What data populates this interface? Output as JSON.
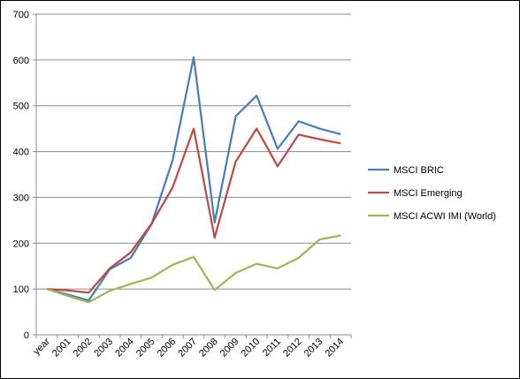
{
  "chart_data": {
    "type": "line",
    "title": "",
    "xlabel": "",
    "ylabel": "",
    "categories": [
      "year",
      "2001",
      "2002",
      "2003",
      "2004",
      "2005",
      "2006",
      "2007",
      "2008",
      "2009",
      "2010",
      "2011",
      "2012",
      "2013",
      "2014"
    ],
    "ylim": [
      0,
      700
    ],
    "yticks": [
      0,
      100,
      200,
      300,
      400,
      500,
      600,
      700
    ],
    "grid": "horizontal",
    "legend_position": "right",
    "series": [
      {
        "name": "MSCI BRIC",
        "color": "#4a7ebb",
        "values": [
          100,
          88,
          75,
          143,
          168,
          242,
          382,
          606,
          245,
          477,
          522,
          406,
          466,
          450,
          438
        ]
      },
      {
        "name": "MSCI Emerging",
        "color": "#be4b48",
        "values": [
          100,
          97,
          92,
          145,
          180,
          243,
          322,
          450,
          212,
          378,
          450,
          368,
          437,
          427,
          418
        ]
      },
      {
        "name": "MSCI ACWI IMI (World)",
        "color": "#98b954",
        "values": [
          100,
          85,
          71,
          96,
          111,
          125,
          153,
          170,
          98,
          135,
          155,
          145,
          168,
          208,
          217
        ]
      }
    ]
  }
}
